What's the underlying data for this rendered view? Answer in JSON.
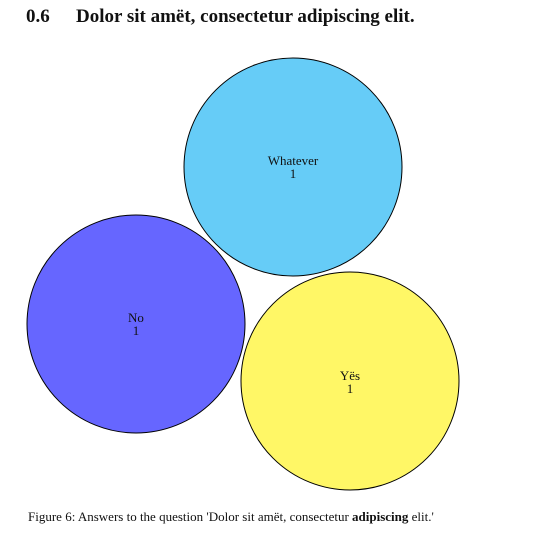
{
  "section": {
    "number": "0.6",
    "title": "Dolor sit amët, consectetur adipiscing elit."
  },
  "chart_data": {
    "type": "bubble",
    "title": "",
    "bubbles": [
      {
        "label": "Whatever",
        "value": 1,
        "color": "#66ccf7"
      },
      {
        "label": "No",
        "value": 1,
        "color": "#6666ff"
      },
      {
        "label": "Yës",
        "value": 1,
        "color": "#fff766"
      }
    ]
  },
  "caption": {
    "prefix": "Figure 6: Answers to the question 'Dolor sit amët, consectetur ",
    "bold": "adipiscing",
    "suffix": " elit.'"
  }
}
